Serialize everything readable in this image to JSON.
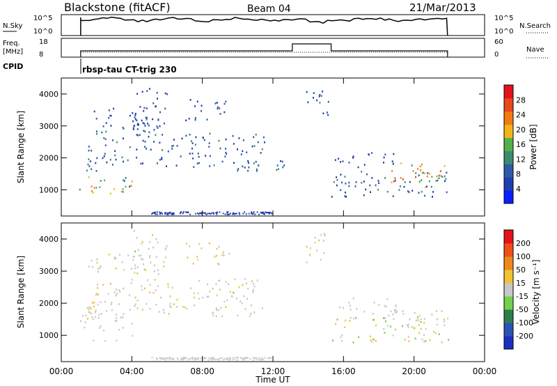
{
  "header": {
    "station": "Blackstone (fitACF)",
    "beam": "Beam 04",
    "date": "21/Mar/2013",
    "nsky_label": "N.Sky",
    "nsky_ticks": [
      "10^5",
      "10^0"
    ],
    "nsearch_label": "N.Search",
    "nsearch_ticks": [
      "10^5",
      "10^0"
    ],
    "freq_label": "Freq.",
    "freq_unit": "[MHz]",
    "freq_ticks": [
      "18",
      "8"
    ],
    "nave_label": "Nave",
    "nave_ticks": [
      "60",
      "0"
    ],
    "cpid_label": "CPID",
    "cpid_value": "rbsp-tau CT-trig 230"
  },
  "colors": {
    "power": [
      "#0a1eff",
      "#1e3fb0",
      "#2e5aa8",
      "#3b8c6e",
      "#55b04a",
      "#f3b41a",
      "#f07c12",
      "#e8481c",
      "#e6111a"
    ],
    "velocity": [
      "#1c2fbf",
      "#2a54b4",
      "#2f7e4a",
      "#6fd24a",
      "#c8c8c8",
      "#f1c232",
      "#f0891c",
      "#ee5018",
      "#e6111a"
    ]
  },
  "chart_data": [
    {
      "type": "heatmap",
      "name": "power",
      "xlabel": "Time UT",
      "ylabel": "Slant Range [km]",
      "x_ticks": [
        "00:00",
        "04:00",
        "08:00",
        "12:00",
        "16:00",
        "20:00",
        "00:00"
      ],
      "y_ticks": [
        1000,
        2000,
        3000,
        4000
      ],
      "ylim": [
        180,
        4500
      ],
      "xlim_hours": [
        0,
        24
      ],
      "colorbar_label": "Power [dB]",
      "colorbar_ticks": [
        "28",
        "24",
        "20",
        "16",
        "12",
        "8",
        "4"
      ],
      "colorbar_range": [
        0,
        32
      ],
      "regions": [
        {
          "t": [
            1.0,
            4.0
          ],
          "r": [
            850,
            1500
          ],
          "v": [
            8,
            26
          ]
        },
        {
          "t": [
            1.0,
            2.0
          ],
          "r": [
            1500,
            2100
          ],
          "v": [
            4,
            14
          ]
        },
        {
          "t": [
            1.5,
            5.5
          ],
          "r": [
            1800,
            3600
          ],
          "v": [
            4,
            12
          ]
        },
        {
          "t": [
            4.0,
            6.0
          ],
          "r": [
            3000,
            4300
          ],
          "v": [
            4,
            10
          ]
        },
        {
          "t": [
            5.5,
            11.5
          ],
          "r": [
            1600,
            2800
          ],
          "v": [
            4,
            12
          ]
        },
        {
          "t": [
            7.0,
            9.5
          ],
          "r": [
            3200,
            3900
          ],
          "v": [
            4,
            10
          ]
        },
        {
          "t": [
            12.0,
            13.0
          ],
          "r": [
            1500,
            2100
          ],
          "v": [
            6,
            14
          ]
        },
        {
          "t": [
            13.8,
            15.2
          ],
          "r": [
            3300,
            4200
          ],
          "v": [
            4,
            12
          ]
        },
        {
          "t": [
            15.3,
            22.0
          ],
          "r": [
            800,
            1600
          ],
          "v": [
            4,
            14
          ]
        },
        {
          "t": [
            18.5,
            22.0
          ],
          "r": [
            1100,
            1900
          ],
          "v": [
            12,
            28
          ]
        },
        {
          "t": [
            15.5,
            19.0
          ],
          "r": [
            1700,
            2200
          ],
          "v": [
            4,
            10
          ]
        }
      ]
    },
    {
      "type": "heatmap",
      "name": "velocity",
      "xlabel": "Time UT",
      "ylabel": "Slant Range [km]",
      "x_ticks": [
        "00:00",
        "04:00",
        "08:00",
        "12:00",
        "16:00",
        "20:00",
        "00:00"
      ],
      "y_ticks": [
        1000,
        2000,
        3000,
        4000
      ],
      "ylim": [
        180,
        4500
      ],
      "xlim_hours": [
        0,
        24
      ],
      "colorbar_label": "Velocity [m s⁻¹]",
      "colorbar_ticks": [
        "200",
        "100",
        "50",
        "15",
        "-15",
        "-50",
        "-100",
        "-200"
      ],
      "colorbar_range": [
        -250,
        250
      ],
      "regions": [
        {
          "t": [
            1.0,
            4.0
          ],
          "r": [
            850,
            1800
          ],
          "v": [
            -15,
            15
          ]
        },
        {
          "t": [
            1.0,
            2.0
          ],
          "r": [
            1500,
            2100
          ],
          "v": [
            15,
            60
          ]
        },
        {
          "t": [
            1.5,
            5.5
          ],
          "r": [
            1800,
            3600
          ],
          "v": [
            -20,
            40
          ]
        },
        {
          "t": [
            4.0,
            6.0
          ],
          "r": [
            3000,
            4300
          ],
          "v": [
            -30,
            40
          ]
        },
        {
          "t": [
            5.5,
            11.5
          ],
          "r": [
            1600,
            2800
          ],
          "v": [
            -15,
            40
          ]
        },
        {
          "t": [
            7.0,
            9.5
          ],
          "r": [
            3200,
            3900
          ],
          "v": [
            10,
            60
          ]
        },
        {
          "t": [
            13.8,
            15.2
          ],
          "r": [
            3300,
            4200
          ],
          "v": [
            -15,
            40
          ]
        },
        {
          "t": [
            15.3,
            22.0
          ],
          "r": [
            800,
            1600
          ],
          "v": [
            -80,
            80
          ]
        },
        {
          "t": [
            18.5,
            22.0
          ],
          "r": [
            1200,
            1800
          ],
          "v": [
            -15,
            15
          ]
        },
        {
          "t": [
            15.5,
            19.0
          ],
          "r": [
            1700,
            2200
          ],
          "v": [
            -15,
            20
          ]
        }
      ]
    }
  ]
}
